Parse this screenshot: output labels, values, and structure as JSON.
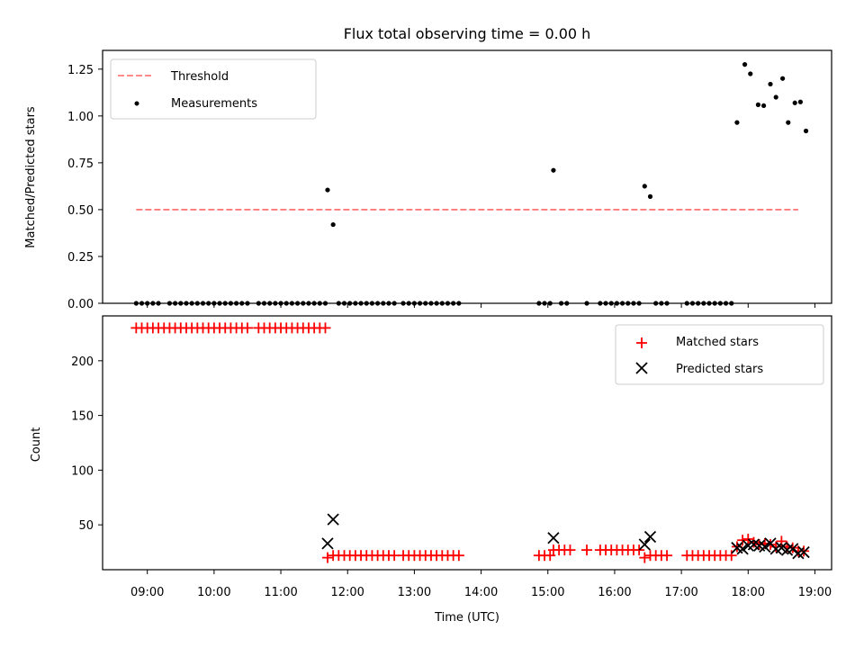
{
  "title": "Flux total observing time = 0.00 h",
  "chart_data": [
    {
      "type": "scatter",
      "ylabel": "Matched/Predicted stars",
      "xlim_hours": [
        8.33,
        19.25
      ],
      "ylim": [
        0,
        1.35
      ],
      "yticks": [
        0.0,
        0.25,
        0.5,
        0.75,
        1.0,
        1.25
      ],
      "ytick_labels": [
        "0.00",
        "0.25",
        "0.50",
        "0.75",
        "1.00",
        "1.25"
      ],
      "legend": {
        "placement": "top-left",
        "entries": [
          "Threshold",
          "Measurements"
        ]
      },
      "threshold": {
        "name": "Threshold",
        "y": 0.5,
        "x": [
          "08:50",
          "18:45"
        ],
        "color": "#ff7b7b",
        "style": "dashed"
      },
      "series": [
        {
          "name": "Measurements",
          "marker": "dot",
          "color": "#000000",
          "points": [
            [
              "08:50",
              0
            ],
            [
              "08:55",
              0
            ],
            [
              "09:00",
              0
            ],
            [
              "09:05",
              0
            ],
            [
              "09:10",
              0
            ],
            [
              "09:20",
              0
            ],
            [
              "09:25",
              0
            ],
            [
              "09:30",
              0
            ],
            [
              "09:35",
              0
            ],
            [
              "09:40",
              0
            ],
            [
              "09:45",
              0
            ],
            [
              "09:50",
              0
            ],
            [
              "09:55",
              0
            ],
            [
              "10:00",
              0
            ],
            [
              "10:05",
              0
            ],
            [
              "10:10",
              0
            ],
            [
              "10:15",
              0
            ],
            [
              "10:20",
              0
            ],
            [
              "10:25",
              0
            ],
            [
              "10:30",
              0
            ],
            [
              "10:40",
              0
            ],
            [
              "10:45",
              0
            ],
            [
              "10:50",
              0
            ],
            [
              "10:55",
              0
            ],
            [
              "11:00",
              0
            ],
            [
              "11:05",
              0
            ],
            [
              "11:10",
              0
            ],
            [
              "11:15",
              0
            ],
            [
              "11:20",
              0
            ],
            [
              "11:25",
              0
            ],
            [
              "11:30",
              0
            ],
            [
              "11:35",
              0
            ],
            [
              "11:40",
              0
            ],
            [
              "11:42",
              0.605
            ],
            [
              "11:47",
              0.42
            ],
            [
              "11:52",
              0
            ],
            [
              "11:57",
              0
            ],
            [
              "12:02",
              0
            ],
            [
              "12:07",
              0
            ],
            [
              "12:12",
              0
            ],
            [
              "12:17",
              0
            ],
            [
              "12:22",
              0
            ],
            [
              "12:27",
              0
            ],
            [
              "12:32",
              0
            ],
            [
              "12:37",
              0
            ],
            [
              "12:42",
              0
            ],
            [
              "12:50",
              0
            ],
            [
              "12:55",
              0
            ],
            [
              "13:00",
              0
            ],
            [
              "13:05",
              0
            ],
            [
              "13:10",
              0
            ],
            [
              "13:15",
              0
            ],
            [
              "13:20",
              0
            ],
            [
              "13:25",
              0
            ],
            [
              "13:30",
              0
            ],
            [
              "13:35",
              0
            ],
            [
              "13:40",
              0
            ],
            [
              "14:52",
              0
            ],
            [
              "14:57",
              0
            ],
            [
              "15:02",
              0
            ],
            [
              "15:05",
              0.71
            ],
            [
              "15:12",
              0
            ],
            [
              "15:17",
              0
            ],
            [
              "15:35",
              0
            ],
            [
              "15:47",
              0
            ],
            [
              "15:52",
              0
            ],
            [
              "15:57",
              0
            ],
            [
              "16:02",
              0
            ],
            [
              "16:07",
              0
            ],
            [
              "16:12",
              0
            ],
            [
              "16:17",
              0
            ],
            [
              "16:22",
              0
            ],
            [
              "16:27",
              0.625
            ],
            [
              "16:32",
              0.57
            ],
            [
              "16:37",
              0
            ],
            [
              "16:42",
              0
            ],
            [
              "16:47",
              0
            ],
            [
              "17:05",
              0
            ],
            [
              "17:10",
              0
            ],
            [
              "17:15",
              0
            ],
            [
              "17:20",
              0
            ],
            [
              "17:25",
              0
            ],
            [
              "17:30",
              0
            ],
            [
              "17:35",
              0
            ],
            [
              "17:40",
              0
            ],
            [
              "17:45",
              0
            ],
            [
              "17:50",
              0.965
            ],
            [
              "17:57",
              1.275
            ],
            [
              "18:02",
              1.225
            ],
            [
              "18:09",
              1.06
            ],
            [
              "18:14",
              1.055
            ],
            [
              "18:20",
              1.17
            ],
            [
              "18:25",
              1.1
            ],
            [
              "18:31",
              1.2
            ],
            [
              "18:36",
              0.965
            ],
            [
              "18:42",
              1.07
            ],
            [
              "18:47",
              1.075
            ],
            [
              "18:52",
              0.92
            ]
          ]
        }
      ]
    },
    {
      "type": "scatter",
      "xlabel": "Time (UTC)",
      "ylabel": "Count",
      "xlim_hours": [
        8.33,
        19.25
      ],
      "ylim": [
        9,
        241
      ],
      "yticks": [
        50,
        100,
        150,
        200
      ],
      "ytick_labels": [
        "50",
        "100",
        "150",
        "200"
      ],
      "xticks_hours": [
        9,
        10,
        11,
        12,
        13,
        14,
        15,
        16,
        17,
        18,
        19
      ],
      "xtick_labels": [
        "09:00",
        "10:00",
        "11:00",
        "12:00",
        "13:00",
        "14:00",
        "15:00",
        "16:00",
        "17:00",
        "18:00",
        "19:00"
      ],
      "legend": {
        "placement": "top-right",
        "entries": [
          "Matched stars",
          "Predicted stars"
        ]
      },
      "series": [
        {
          "name": "Matched stars",
          "marker": "plus",
          "color": "#ff0000",
          "points": [
            [
              "08:50",
              230
            ],
            [
              "08:55",
              230
            ],
            [
              "09:00",
              230
            ],
            [
              "09:05",
              230
            ],
            [
              "09:10",
              230
            ],
            [
              "09:15",
              230
            ],
            [
              "09:20",
              230
            ],
            [
              "09:25",
              230
            ],
            [
              "09:30",
              230
            ],
            [
              "09:35",
              230
            ],
            [
              "09:40",
              230
            ],
            [
              "09:45",
              230
            ],
            [
              "09:50",
              230
            ],
            [
              "09:55",
              230
            ],
            [
              "10:00",
              230
            ],
            [
              "10:05",
              230
            ],
            [
              "10:10",
              230
            ],
            [
              "10:15",
              230
            ],
            [
              "10:20",
              230
            ],
            [
              "10:25",
              230
            ],
            [
              "10:30",
              230
            ],
            [
              "10:40",
              230
            ],
            [
              "10:45",
              230
            ],
            [
              "10:50",
              230
            ],
            [
              "10:55",
              230
            ],
            [
              "11:00",
              230
            ],
            [
              "11:05",
              230
            ],
            [
              "11:10",
              230
            ],
            [
              "11:15",
              230
            ],
            [
              "11:20",
              230
            ],
            [
              "11:25",
              230
            ],
            [
              "11:30",
              230
            ],
            [
              "11:35",
              230
            ],
            [
              "11:40",
              230
            ],
            [
              "11:42",
              20
            ],
            [
              "11:47",
              22
            ],
            [
              "11:52",
              22
            ],
            [
              "11:57",
              22
            ],
            [
              "12:02",
              22
            ],
            [
              "12:07",
              22
            ],
            [
              "12:12",
              22
            ],
            [
              "12:17",
              22
            ],
            [
              "12:22",
              22
            ],
            [
              "12:27",
              22
            ],
            [
              "12:32",
              22
            ],
            [
              "12:37",
              22
            ],
            [
              "12:42",
              22
            ],
            [
              "12:50",
              22
            ],
            [
              "12:55",
              22
            ],
            [
              "13:00",
              22
            ],
            [
              "13:05",
              22
            ],
            [
              "13:10",
              22
            ],
            [
              "13:15",
              22
            ],
            [
              "13:20",
              22
            ],
            [
              "13:25",
              22
            ],
            [
              "13:30",
              22
            ],
            [
              "13:35",
              22
            ],
            [
              "13:40",
              22
            ],
            [
              "14:52",
              22
            ],
            [
              "14:57",
              22
            ],
            [
              "15:02",
              22
            ],
            [
              "15:05",
              27
            ],
            [
              "15:10",
              27
            ],
            [
              "15:15",
              27
            ],
            [
              "15:20",
              27
            ],
            [
              "15:35",
              27
            ],
            [
              "15:47",
              27
            ],
            [
              "15:52",
              27
            ],
            [
              "15:57",
              27
            ],
            [
              "16:02",
              27
            ],
            [
              "16:07",
              27
            ],
            [
              "16:12",
              27
            ],
            [
              "16:17",
              27
            ],
            [
              "16:22",
              27
            ],
            [
              "16:27",
              20
            ],
            [
              "16:32",
              22
            ],
            [
              "16:37",
              22
            ],
            [
              "16:42",
              22
            ],
            [
              "16:47",
              22
            ],
            [
              "17:05",
              22
            ],
            [
              "17:10",
              22
            ],
            [
              "17:15",
              22
            ],
            [
              "17:20",
              22
            ],
            [
              "17:25",
              22
            ],
            [
              "17:30",
              22
            ],
            [
              "17:35",
              22
            ],
            [
              "17:40",
              22
            ],
            [
              "17:45",
              22
            ],
            [
              "17:50",
              30
            ],
            [
              "17:55",
              36
            ],
            [
              "18:00",
              37
            ],
            [
              "18:05",
              34
            ],
            [
              "18:10",
              32
            ],
            [
              "18:15",
              33
            ],
            [
              "18:20",
              32
            ],
            [
              "18:25",
              30
            ],
            [
              "18:30",
              35
            ],
            [
              "18:35",
              30
            ],
            [
              "18:40",
              29
            ],
            [
              "18:45",
              26
            ],
            [
              "18:50",
              26
            ]
          ]
        },
        {
          "name": "Predicted stars",
          "marker": "x",
          "color": "#000000",
          "points": [
            [
              "11:42",
              33
            ],
            [
              "11:47",
              55
            ],
            [
              "15:05",
              38
            ],
            [
              "16:27",
              32
            ],
            [
              "16:32",
              39
            ],
            [
              "17:50",
              29
            ],
            [
              "17:55",
              28
            ],
            [
              "18:00",
              31
            ],
            [
              "18:05",
              32
            ],
            [
              "18:10",
              31
            ],
            [
              "18:15",
              30
            ],
            [
              "18:20",
              33
            ],
            [
              "18:25",
              28
            ],
            [
              "18:30",
              29
            ],
            [
              "18:35",
              27
            ],
            [
              "18:40",
              28
            ],
            [
              "18:45",
              24
            ],
            [
              "18:50",
              25
            ]
          ]
        }
      ]
    }
  ]
}
